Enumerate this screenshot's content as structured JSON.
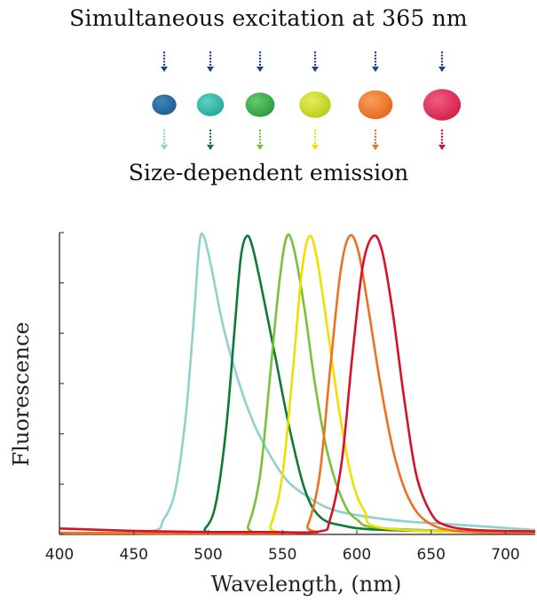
{
  "header": {
    "title": "Simultaneous excitation at 365 nm",
    "subtitle": "Size-dependent emission"
  },
  "quantum_dots": [
    {
      "color": "#1d5d8f",
      "highlight": "#3e86b8",
      "emission_color": "#8fd1cc",
      "size": 1.0
    },
    {
      "color": "#23a89a",
      "highlight": "#5fd2c3",
      "emission_color": "#0e7a35",
      "size": 1.12
    },
    {
      "color": "#2a9a3e",
      "highlight": "#68c96c",
      "emission_color": "#78c23a",
      "size": 1.2
    },
    {
      "color": "#b8cc1a",
      "highlight": "#e4ee5a",
      "emission_color": "#f0e000",
      "size": 1.3
    },
    {
      "color": "#e8641a",
      "highlight": "#f7a05a",
      "emission_color": "#ef7020",
      "size": 1.42
    },
    {
      "color": "#d41f48",
      "highlight": "#ef5d82",
      "emission_color": "#d8102a",
      "size": 1.55
    }
  ],
  "excitation_arrow_color": "#1f3f9a",
  "chart_data": {
    "type": "line",
    "xlabel": "Wavelength, (nm)",
    "ylabel": "Fluorescence",
    "xlim": [
      400,
      720
    ],
    "ylim": [
      0,
      1
    ],
    "xticks": [
      400,
      450,
      500,
      550,
      600,
      650,
      700
    ],
    "y_minor_ticks": 6,
    "grid": false,
    "legend": "none",
    "series": [
      {
        "color": "#8fd1cc",
        "peak": 495,
        "baseline": 0.005,
        "points": [
          [
            400,
            0.005
          ],
          [
            460,
            0.01
          ],
          [
            470,
            0.05
          ],
          [
            478,
            0.15
          ],
          [
            485,
            0.4
          ],
          [
            490,
            0.7
          ],
          [
            494,
            0.97
          ],
          [
            497,
            1.0
          ],
          [
            502,
            0.9
          ],
          [
            510,
            0.7
          ],
          [
            520,
            0.52
          ],
          [
            530,
            0.38
          ],
          [
            540,
            0.28
          ],
          [
            550,
            0.2
          ],
          [
            560,
            0.15
          ],
          [
            580,
            0.09
          ],
          [
            600,
            0.065
          ],
          [
            630,
            0.045
          ],
          [
            660,
            0.035
          ],
          [
            720,
            0.015
          ]
        ]
      },
      {
        "color": "#0e7a35",
        "peak": 525,
        "baseline": 0.005,
        "points": [
          [
            400,
            0.005
          ],
          [
            490,
            0.005
          ],
          [
            498,
            0.02
          ],
          [
            505,
            0.1
          ],
          [
            512,
            0.35
          ],
          [
            518,
            0.7
          ],
          [
            522,
            0.93
          ],
          [
            526,
            1.0
          ],
          [
            530,
            0.96
          ],
          [
            537,
            0.8
          ],
          [
            545,
            0.6
          ],
          [
            555,
            0.35
          ],
          [
            565,
            0.15
          ],
          [
            575,
            0.06
          ],
          [
            590,
            0.03
          ],
          [
            620,
            0.015
          ],
          [
            720,
            0.005
          ]
        ]
      },
      {
        "color": "#78c23a",
        "peak": 553,
        "baseline": 0.005,
        "points": [
          [
            400,
            0.005
          ],
          [
            520,
            0.005
          ],
          [
            527,
            0.03
          ],
          [
            535,
            0.2
          ],
          [
            542,
            0.55
          ],
          [
            548,
            0.85
          ],
          [
            553,
            1.0
          ],
          [
            558,
            0.95
          ],
          [
            565,
            0.75
          ],
          [
            572,
            0.5
          ],
          [
            580,
            0.28
          ],
          [
            590,
            0.12
          ],
          [
            600,
            0.05
          ],
          [
            620,
            0.02
          ],
          [
            720,
            0.005
          ]
        ]
      },
      {
        "color": "#f0e000",
        "peak": 568,
        "baseline": 0.005,
        "points": [
          [
            400,
            0.005
          ],
          [
            535,
            0.005
          ],
          [
            542,
            0.03
          ],
          [
            550,
            0.2
          ],
          [
            557,
            0.55
          ],
          [
            563,
            0.88
          ],
          [
            568,
            1.0
          ],
          [
            573,
            0.93
          ],
          [
            580,
            0.7
          ],
          [
            588,
            0.42
          ],
          [
            596,
            0.2
          ],
          [
            605,
            0.08
          ],
          [
            620,
            0.02
          ],
          [
            720,
            0.005
          ]
        ]
      },
      {
        "color": "#ef7020",
        "peak": 596,
        "baseline": 0.005,
        "points": [
          [
            400,
            0.005
          ],
          [
            560,
            0.005
          ],
          [
            567,
            0.03
          ],
          [
            575,
            0.2
          ],
          [
            582,
            0.55
          ],
          [
            589,
            0.88
          ],
          [
            595,
            1.0
          ],
          [
            601,
            0.95
          ],
          [
            608,
            0.75
          ],
          [
            616,
            0.5
          ],
          [
            625,
            0.27
          ],
          [
            635,
            0.12
          ],
          [
            648,
            0.04
          ],
          [
            670,
            0.01
          ],
          [
            720,
            0.005
          ]
        ]
      },
      {
        "color": "#d8102a",
        "peak": 612,
        "baseline": 0.005,
        "points": [
          [
            400,
            0.02
          ],
          [
            450,
            0.012
          ],
          [
            500,
            0.008
          ],
          [
            540,
            0.008
          ],
          [
            575,
            0.01
          ],
          [
            582,
            0.05
          ],
          [
            590,
            0.25
          ],
          [
            597,
            0.6
          ],
          [
            604,
            0.9
          ],
          [
            611,
            1.0
          ],
          [
            617,
            0.95
          ],
          [
            624,
            0.75
          ],
          [
            632,
            0.45
          ],
          [
            640,
            0.2
          ],
          [
            650,
            0.07
          ],
          [
            660,
            0.03
          ],
          [
            680,
            0.015
          ],
          [
            720,
            0.01
          ]
        ]
      }
    ]
  }
}
